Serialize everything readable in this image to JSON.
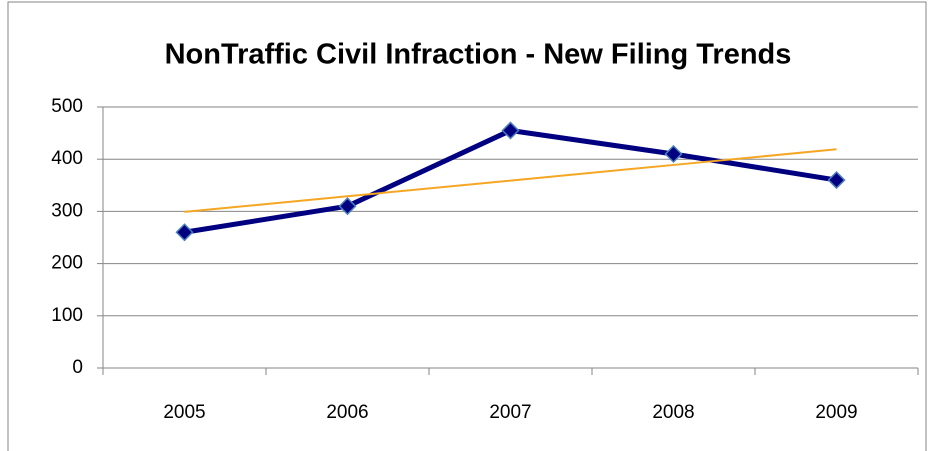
{
  "chart_data": {
    "type": "line",
    "title": "NonTraffic Civil Infraction - New Filing Trends",
    "categories": [
      "2005",
      "2006",
      "2007",
      "2008",
      "2009"
    ],
    "series": [
      {
        "color": "#000080",
        "values": [
          260,
          310,
          455,
          410,
          360
        ]
      }
    ],
    "trendline": {
      "color": "#f5a623",
      "values": [
        299,
        329,
        359,
        389,
        419
      ]
    },
    "ylim": [
      0,
      500
    ],
    "yticks": [
      0,
      100,
      200,
      300,
      400,
      500
    ],
    "grid": true
  }
}
